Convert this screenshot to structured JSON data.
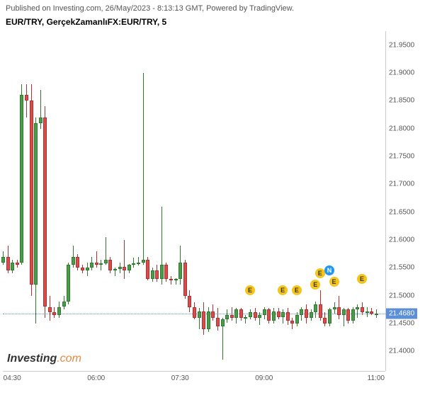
{
  "header": {
    "publish_text": "Published on Investing.com, 26/May/2023 - 8:13:13 GMT, Powered by TradingView.",
    "symbol_text": "EUR/TRY, GerçekZamanlıFX:EUR/TRY, 5"
  },
  "chart": {
    "type": "candlestick",
    "y_min": 21.365,
    "y_max": 21.975,
    "y_ticks": [
      21.4,
      21.45,
      21.5,
      21.55,
      21.6,
      21.65,
      21.7,
      21.75,
      21.8,
      21.85,
      21.9,
      21.95
    ],
    "current_price": 21.468,
    "x_min": 0,
    "x_max": 82,
    "x_ticks": [
      {
        "pos": 2,
        "label": "04:30"
      },
      {
        "pos": 20,
        "label": "06:00"
      },
      {
        "pos": 38,
        "label": "07:30"
      },
      {
        "pos": 56,
        "label": "09:00"
      },
      {
        "pos": 80,
        "label": "11:00"
      }
    ],
    "colors": {
      "up_body": "#4a9b4a",
      "up_border": "#2f7a2f",
      "down_body": "#d84c4c",
      "down_border": "#b03030",
      "background": "#ffffff",
      "grid": "#cccccc",
      "price_line": "#5b8fd6",
      "price_bg": "#5b8fd6",
      "event_e_bg": "#f5c518",
      "event_e_fg": "#333333",
      "event_n_bg": "#2196f3",
      "event_n_fg": "#ffffff"
    },
    "candles": [
      {
        "i": 0,
        "o": 21.56,
        "h": 21.58,
        "l": 21.555,
        "c": 21.57
      },
      {
        "i": 1,
        "o": 21.57,
        "h": 21.59,
        "l": 21.54,
        "c": 21.545
      },
      {
        "i": 2,
        "o": 21.545,
        "h": 21.565,
        "l": 21.54,
        "c": 21.56
      },
      {
        "i": 3,
        "o": 21.56,
        "h": 21.565,
        "l": 21.55,
        "c": 21.555
      },
      {
        "i": 4,
        "o": 21.56,
        "h": 21.88,
        "l": 21.555,
        "c": 21.86
      },
      {
        "i": 5,
        "o": 21.86,
        "h": 21.88,
        "l": 21.82,
        "c": 21.85
      },
      {
        "i": 6,
        "o": 21.85,
        "h": 21.88,
        "l": 21.5,
        "c": 21.52
      },
      {
        "i": 7,
        "o": 21.52,
        "h": 21.82,
        "l": 21.45,
        "c": 21.81
      },
      {
        "i": 8,
        "o": 21.81,
        "h": 21.87,
        "l": 21.8,
        "c": 21.82
      },
      {
        "i": 9,
        "o": 21.82,
        "h": 21.84,
        "l": 21.46,
        "c": 21.48
      },
      {
        "i": 10,
        "o": 21.48,
        "h": 21.5,
        "l": 21.455,
        "c": 21.47
      },
      {
        "i": 11,
        "o": 21.47,
        "h": 21.48,
        "l": 21.46,
        "c": 21.465
      },
      {
        "i": 12,
        "o": 21.465,
        "h": 21.49,
        "l": 21.46,
        "c": 21.48
      },
      {
        "i": 13,
        "o": 21.48,
        "h": 21.5,
        "l": 21.475,
        "c": 21.49
      },
      {
        "i": 14,
        "o": 21.49,
        "h": 21.56,
        "l": 21.485,
        "c": 21.555
      },
      {
        "i": 15,
        "o": 21.555,
        "h": 21.59,
        "l": 21.55,
        "c": 21.57
      },
      {
        "i": 16,
        "o": 21.57,
        "h": 21.575,
        "l": 21.545,
        "c": 21.55
      },
      {
        "i": 17,
        "o": 21.55,
        "h": 21.555,
        "l": 21.54,
        "c": 21.545
      },
      {
        "i": 18,
        "o": 21.545,
        "h": 21.56,
        "l": 21.535,
        "c": 21.55
      },
      {
        "i": 19,
        "o": 21.55,
        "h": 21.57,
        "l": 21.545,
        "c": 21.56
      },
      {
        "i": 20,
        "o": 21.56,
        "h": 21.58,
        "l": 21.55,
        "c": 21.555
      },
      {
        "i": 21,
        "o": 21.555,
        "h": 21.565,
        "l": 21.545,
        "c": 21.558
      },
      {
        "i": 22,
        "o": 21.558,
        "h": 21.605,
        "l": 21.555,
        "c": 21.565
      },
      {
        "i": 23,
        "o": 21.565,
        "h": 21.57,
        "l": 21.54,
        "c": 21.545
      },
      {
        "i": 24,
        "o": 21.545,
        "h": 21.55,
        "l": 21.535,
        "c": 21.548
      },
      {
        "i": 25,
        "o": 21.548,
        "h": 21.56,
        "l": 21.54,
        "c": 21.552
      },
      {
        "i": 26,
        "o": 21.552,
        "h": 21.6,
        "l": 21.53,
        "c": 21.545
      },
      {
        "i": 27,
        "o": 21.545,
        "h": 21.557,
        "l": 21.54,
        "c": 21.555
      },
      {
        "i": 28,
        "o": 21.555,
        "h": 21.568,
        "l": 21.55,
        "c": 21.558
      },
      {
        "i": 29,
        "o": 21.558,
        "h": 21.569,
        "l": 21.554,
        "c": 21.56
      },
      {
        "i": 30,
        "o": 21.56,
        "h": 21.9,
        "l": 21.555,
        "c": 21.565
      },
      {
        "i": 31,
        "o": 21.565,
        "h": 21.57,
        "l": 21.528,
        "c": 21.53
      },
      {
        "i": 32,
        "o": 21.53,
        "h": 21.55,
        "l": 21.525,
        "c": 21.545
      },
      {
        "i": 33,
        "o": 21.545,
        "h": 21.555,
        "l": 21.525,
        "c": 21.53
      },
      {
        "i": 34,
        "o": 21.53,
        "h": 21.66,
        "l": 21.52,
        "c": 21.555
      },
      {
        "i": 35,
        "o": 21.555,
        "h": 21.56,
        "l": 21.525,
        "c": 21.53
      },
      {
        "i": 36,
        "o": 21.53,
        "h": 21.535,
        "l": 21.52,
        "c": 21.528
      },
      {
        "i": 37,
        "o": 21.528,
        "h": 21.532,
        "l": 21.52,
        "c": 21.53
      },
      {
        "i": 38,
        "o": 21.53,
        "h": 21.59,
        "l": 21.52,
        "c": 21.56
      },
      {
        "i": 39,
        "o": 21.56,
        "h": 21.565,
        "l": 21.495,
        "c": 21.5
      },
      {
        "i": 40,
        "o": 21.5,
        "h": 21.51,
        "l": 21.47,
        "c": 21.48
      },
      {
        "i": 41,
        "o": 21.48,
        "h": 21.488,
        "l": 21.458,
        "c": 21.46
      },
      {
        "i": 42,
        "o": 21.46,
        "h": 21.478,
        "l": 21.44,
        "c": 21.472
      },
      {
        "i": 43,
        "o": 21.472,
        "h": 21.488,
        "l": 21.43,
        "c": 21.44
      },
      {
        "i": 44,
        "o": 21.44,
        "h": 21.48,
        "l": 21.435,
        "c": 21.472
      },
      {
        "i": 45,
        "o": 21.472,
        "h": 21.485,
        "l": 21.455,
        "c": 21.46
      },
      {
        "i": 46,
        "o": 21.46,
        "h": 21.478,
        "l": 21.438,
        "c": 21.445
      },
      {
        "i": 47,
        "o": 21.445,
        "h": 21.46,
        "l": 21.385,
        "c": 21.458
      },
      {
        "i": 48,
        "o": 21.458,
        "h": 21.475,
        "l": 21.452,
        "c": 21.465
      },
      {
        "i": 49,
        "o": 21.465,
        "h": 21.48,
        "l": 21.455,
        "c": 21.46
      },
      {
        "i": 50,
        "o": 21.46,
        "h": 21.478,
        "l": 21.45,
        "c": 21.475
      },
      {
        "i": 51,
        "o": 21.475,
        "h": 21.478,
        "l": 21.455,
        "c": 21.46
      },
      {
        "i": 52,
        "o": 21.46,
        "h": 21.465,
        "l": 21.45,
        "c": 21.462
      },
      {
        "i": 53,
        "o": 21.462,
        "h": 21.475,
        "l": 21.458,
        "c": 21.47
      },
      {
        "i": 54,
        "o": 21.47,
        "h": 21.478,
        "l": 21.455,
        "c": 21.46
      },
      {
        "i": 55,
        "o": 21.46,
        "h": 21.47,
        "l": 21.448,
        "c": 21.465
      },
      {
        "i": 56,
        "o": 21.465,
        "h": 21.48,
        "l": 21.458,
        "c": 21.475
      },
      {
        "i": 57,
        "o": 21.475,
        "h": 21.478,
        "l": 21.45,
        "c": 21.455
      },
      {
        "i": 58,
        "o": 21.455,
        "h": 21.478,
        "l": 21.45,
        "c": 21.472
      },
      {
        "i": 59,
        "o": 21.472,
        "h": 21.478,
        "l": 21.458,
        "c": 21.462
      },
      {
        "i": 60,
        "o": 21.462,
        "h": 21.475,
        "l": 21.45,
        "c": 21.47
      },
      {
        "i": 61,
        "o": 21.47,
        "h": 21.478,
        "l": 21.448,
        "c": 21.455
      },
      {
        "i": 62,
        "o": 21.455,
        "h": 21.46,
        "l": 21.44,
        "c": 21.45
      },
      {
        "i": 63,
        "o": 21.45,
        "h": 21.47,
        "l": 21.445,
        "c": 21.465
      },
      {
        "i": 64,
        "o": 21.465,
        "h": 21.48,
        "l": 21.455,
        "c": 21.475
      },
      {
        "i": 65,
        "o": 21.475,
        "h": 21.485,
        "l": 21.45,
        "c": 21.46
      },
      {
        "i": 66,
        "o": 21.46,
        "h": 21.475,
        "l": 21.455,
        "c": 21.47
      },
      {
        "i": 67,
        "o": 21.47,
        "h": 21.49,
        "l": 21.46,
        "c": 21.485
      },
      {
        "i": 68,
        "o": 21.485,
        "h": 21.51,
        "l": 21.455,
        "c": 21.46
      },
      {
        "i": 69,
        "o": 21.46,
        "h": 21.47,
        "l": 21.445,
        "c": 21.45
      },
      {
        "i": 70,
        "o": 21.45,
        "h": 21.478,
        "l": 21.445,
        "c": 21.475
      },
      {
        "i": 71,
        "o": 21.475,
        "h": 21.488,
        "l": 21.468,
        "c": 21.48
      },
      {
        "i": 72,
        "o": 21.48,
        "h": 21.5,
        "l": 21.458,
        "c": 21.465
      },
      {
        "i": 73,
        "o": 21.465,
        "h": 21.478,
        "l": 21.445,
        "c": 21.475
      },
      {
        "i": 74,
        "o": 21.475,
        "h": 21.478,
        "l": 21.45,
        "c": 21.455
      },
      {
        "i": 75,
        "o": 21.455,
        "h": 21.48,
        "l": 21.45,
        "c": 21.475
      },
      {
        "i": 76,
        "o": 21.475,
        "h": 21.485,
        "l": 21.46,
        "c": 21.48
      },
      {
        "i": 77,
        "o": 21.48,
        "h": 21.488,
        "l": 21.465,
        "c": 21.47
      },
      {
        "i": 78,
        "o": 21.47,
        "h": 21.48,
        "l": 21.462,
        "c": 21.472
      },
      {
        "i": 79,
        "o": 21.472,
        "h": 21.478,
        "l": 21.465,
        "c": 21.468
      },
      {
        "i": 80,
        "o": 21.468,
        "h": 21.475,
        "l": 21.46,
        "c": 21.468
      }
    ],
    "events": [
      {
        "i": 53,
        "y": 21.51,
        "label": "E",
        "type": "E"
      },
      {
        "i": 60,
        "y": 21.51,
        "label": "E",
        "type": "E"
      },
      {
        "i": 63,
        "y": 21.51,
        "label": "E",
        "type": "E"
      },
      {
        "i": 67,
        "y": 21.52,
        "label": "E",
        "type": "E"
      },
      {
        "i": 68,
        "y": 21.54,
        "label": "E",
        "type": "E"
      },
      {
        "i": 71,
        "y": 21.525,
        "label": "E",
        "type": "E"
      },
      {
        "i": 70,
        "y": 21.545,
        "label": "N",
        "type": "N"
      },
      {
        "i": 77,
        "y": 21.53,
        "label": "E",
        "type": "E"
      }
    ]
  },
  "logo": {
    "text": "Investing",
    "suffix": ".com"
  }
}
